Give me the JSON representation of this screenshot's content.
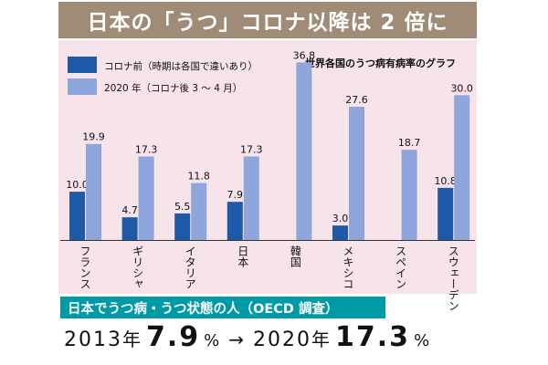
{
  "title": "日本の「うつ」コロナ以降は 2 倍に",
  "chart_data": {
    "type": "bar",
    "note": "世界各国のうつ病有病率のグラフ",
    "categories": [
      "フランス",
      "ギリシャ",
      "イタリア",
      "日本",
      "韓国",
      "メキシコ",
      "スペイン",
      "スウェーデン"
    ],
    "series": [
      {
        "name": "コロナ前（時期は各国で違いあり）",
        "color": "#1e5aa8",
        "values": [
          10.0,
          4.7,
          5.5,
          7.9,
          null,
          3.0,
          null,
          10.8
        ],
        "labels": [
          "10.0",
          "4.7",
          "5.5",
          "7.9",
          "",
          "3.0",
          "",
          "10.8"
        ]
      },
      {
        "name": "2020 年（コロナ後 3 ～ 4 月）",
        "color": "#8fa6dc",
        "values": [
          19.9,
          17.3,
          11.8,
          17.3,
          36.8,
          27.6,
          18.7,
          30.0
        ],
        "labels": [
          "19.9",
          "17.3",
          "11.8",
          "17.3",
          "36.8",
          "27.6",
          "18.7",
          "30.0"
        ]
      }
    ],
    "ylim": [
      0,
      38
    ],
    "legend": "top-left",
    "grid": false
  },
  "subtitle": "日本でうつ病・うつ状態の人（OECD 調査）",
  "stat": {
    "year1": "2013",
    "year_unit": "年",
    "value1": "7.9",
    "pct": "%",
    "arrow": "→",
    "year2": "2020",
    "value2": "17.3"
  }
}
